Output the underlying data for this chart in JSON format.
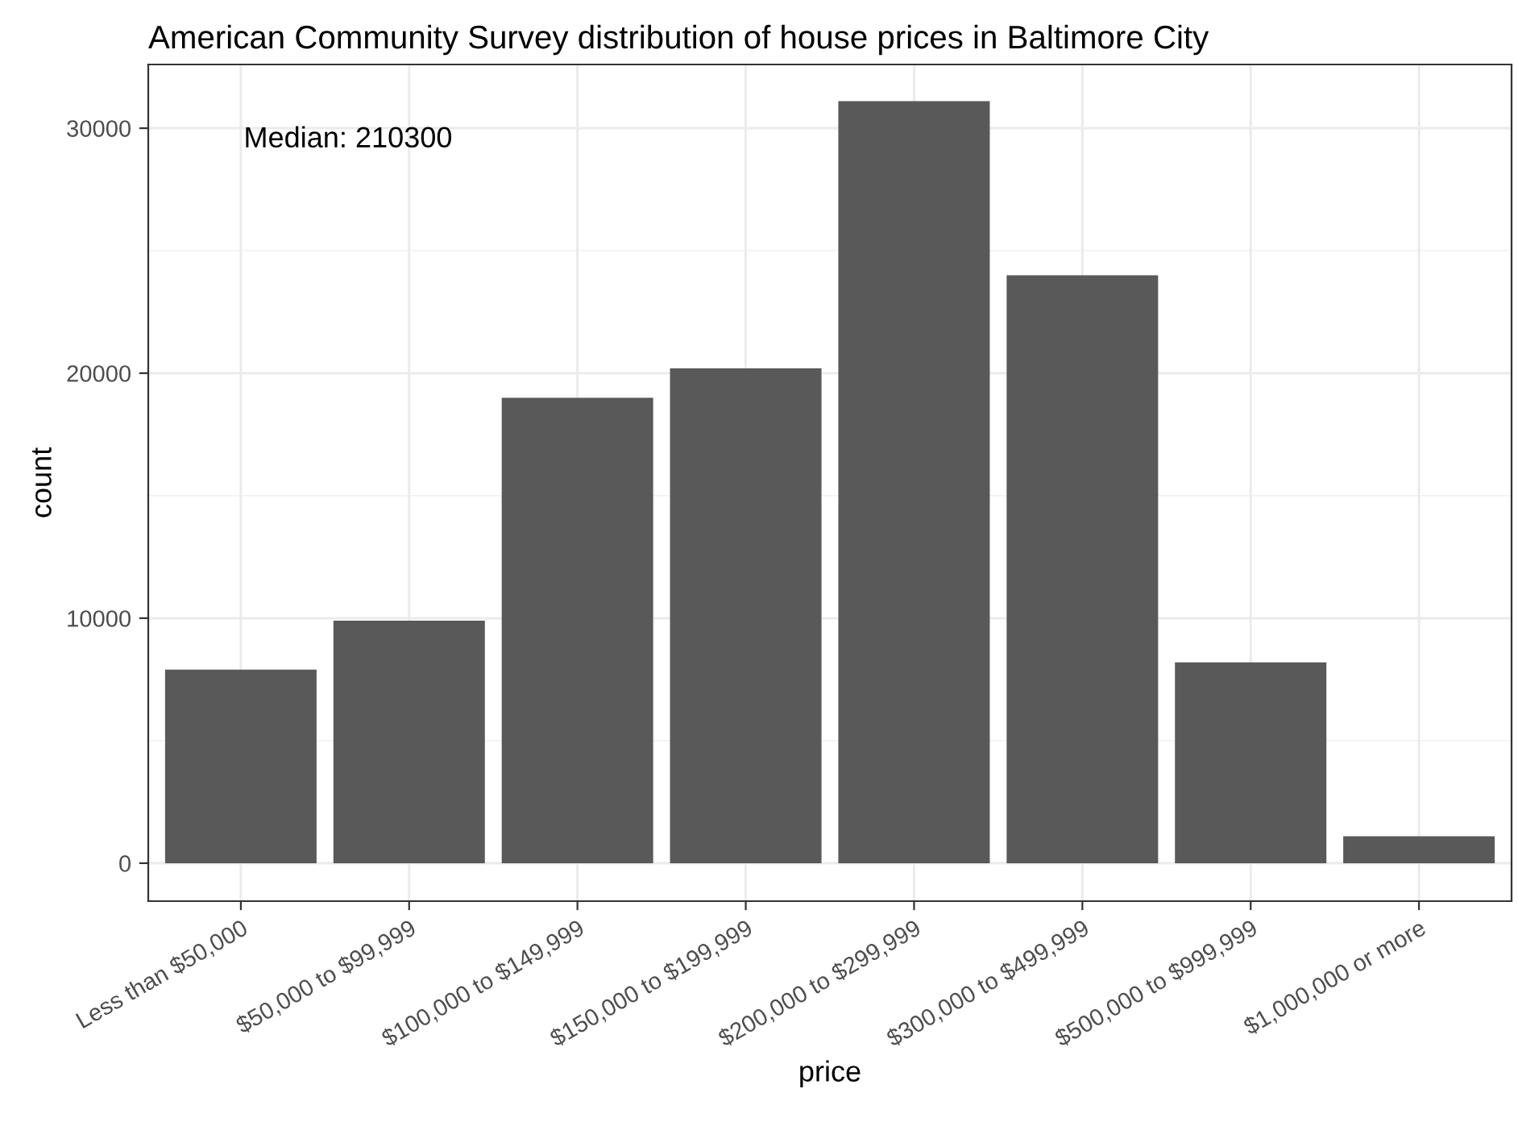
{
  "chart_data": {
    "type": "bar",
    "title": "American Community Survey distribution of house prices in Baltimore City",
    "xlabel": "price",
    "ylabel": "count",
    "categories": [
      "Less than $50,000",
      "$50,000 to $99,999",
      "$100,000 to $149,999",
      "$150,000 to $199,999",
      "$200,000 to $299,999",
      "$300,000 to $499,999",
      "$500,000 to $999,999",
      "$1,000,000 or more"
    ],
    "values": [
      7900,
      9900,
      19000,
      20200,
      31100,
      24000,
      8200,
      1100
    ],
    "color": "#595959",
    "ylim": [
      -1550,
      32600
    ],
    "yticks": [
      0,
      10000,
      20000,
      30000
    ],
    "grid": true,
    "annotations": [
      "Median: 210300"
    ]
  }
}
